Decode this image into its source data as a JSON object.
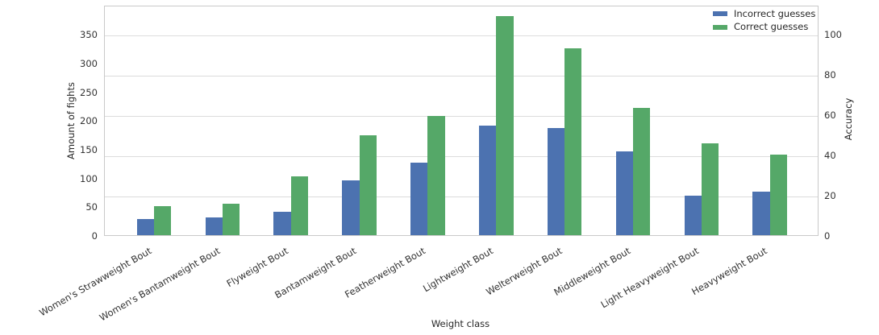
{
  "chart_data": {
    "type": "bar",
    "title": "",
    "xlabel": "Weight class",
    "categories": [
      "Women's Strawweight Bout",
      "Women's Bantamweight Bout",
      "Flyweight Bout",
      "Bantamweight Bout",
      "Featherweight Bout",
      "Lightweight Bout",
      "Welterweight Bout",
      "Middleweight Bout",
      "Light Heavyweight Bout",
      "Heavyweight Bout"
    ],
    "series": [
      {
        "name": "Incorrect guesses",
        "color": "#4C72B0",
        "axis": "left",
        "values": [
          28,
          31,
          41,
          96,
          126,
          191,
          186,
          146,
          68,
          75
        ]
      },
      {
        "name": "Correct guesses",
        "color": "#55A868",
        "axis": "left",
        "values": [
          50,
          55,
          103,
          174,
          208,
          381,
          325,
          221,
          160,
          140
        ]
      }
    ],
    "left_axis": {
      "label": "Amount of fights",
      "ticks": [
        0,
        50,
        100,
        150,
        200,
        250,
        300,
        350
      ],
      "range": [
        0,
        401.5
      ]
    },
    "right_axis": {
      "label": "Accuracy",
      "ticks": [
        0,
        20,
        40,
        60,
        80,
        100
      ],
      "range": [
        0,
        114.7
      ]
    },
    "grid": true,
    "gridlines_at": "right-axis-ticks",
    "legend_position": "upper right",
    "colors": {
      "incorrect": "#4C72B0",
      "correct": "#55A868",
      "gridline": "#dcdcdc",
      "spine": "#c9c9c9",
      "text": "#262626"
    }
  }
}
